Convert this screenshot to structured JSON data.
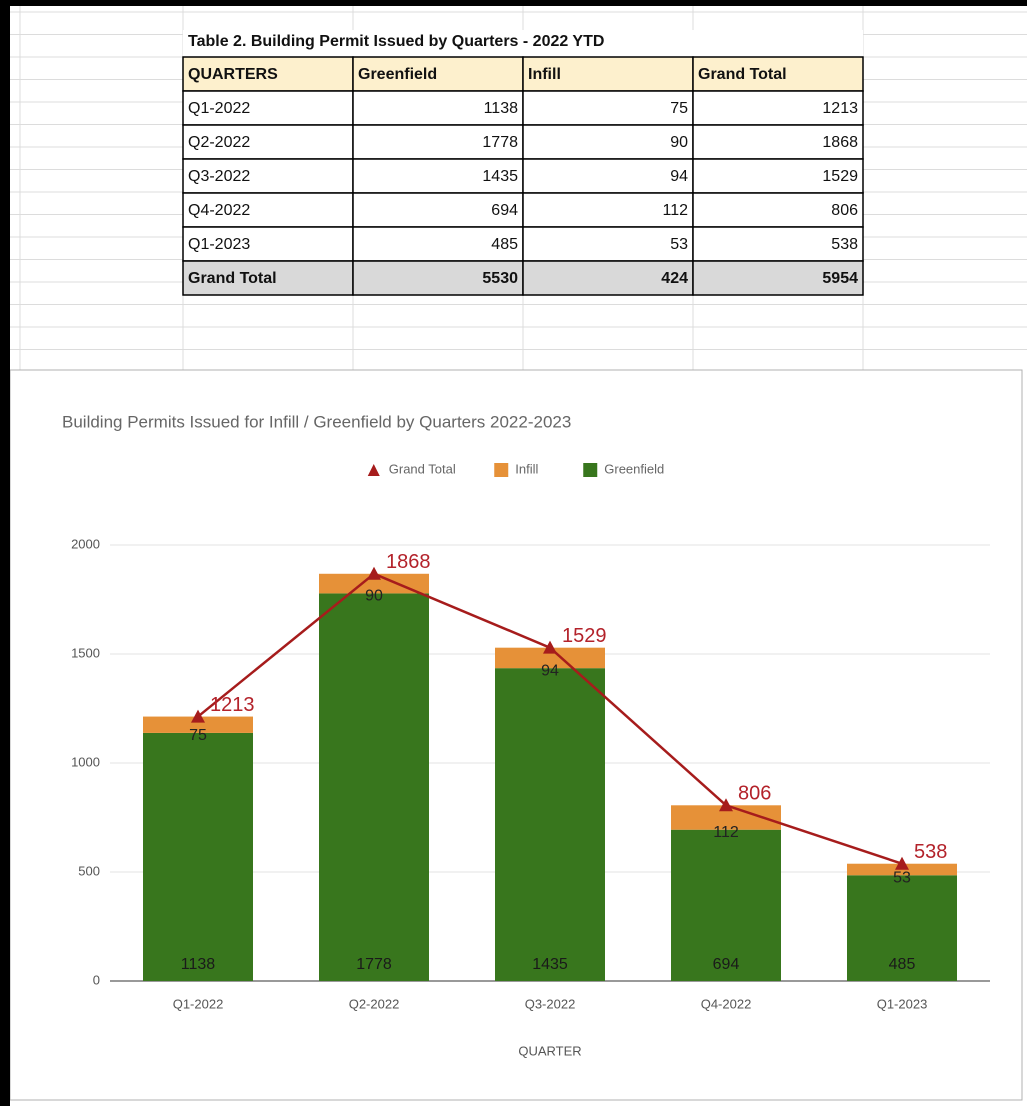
{
  "table": {
    "title": "Table 2. Building Permit Issued by Quarters - 2022 YTD",
    "header": [
      "QUARTERS",
      "Greenfield",
      "Infill",
      "Grand Total"
    ],
    "rows": [
      [
        "Q1-2022",
        1138,
        75,
        1213
      ],
      [
        "Q2-2022",
        1778,
        90,
        1868
      ],
      [
        "Q3-2022",
        1435,
        94,
        1529
      ],
      [
        "Q4-2022",
        694,
        112,
        806
      ],
      [
        "Q1-2023",
        485,
        53,
        538
      ]
    ],
    "total": [
      "Grand Total",
      5530,
      424,
      5954
    ]
  },
  "chart_data": {
    "type": "bar",
    "stacked": true,
    "title": "Building Permits Issued for Infill / Greenfield by Quarters 2022-2023",
    "x_label": "QUARTER",
    "categories": [
      "Q1-2022",
      "Q2-2022",
      "Q3-2022",
      "Q4-2022",
      "Q1-2023"
    ],
    "series": [
      {
        "name": "Grand Total",
        "type": "line",
        "color": "#a61c1c",
        "values": [
          1213,
          1868,
          1529,
          806,
          538
        ]
      },
      {
        "name": "Infill",
        "color": "#e69138",
        "values": [
          75,
          90,
          94,
          112,
          53
        ]
      },
      {
        "name": "Greenfield",
        "color": "#38761d",
        "values": [
          1138,
          1778,
          1435,
          694,
          485
        ]
      }
    ],
    "ylim": [
      0,
      2000
    ],
    "yticks": [
      0,
      500,
      1000,
      1500,
      2000
    ],
    "grid": true,
    "legend": "top"
  }
}
